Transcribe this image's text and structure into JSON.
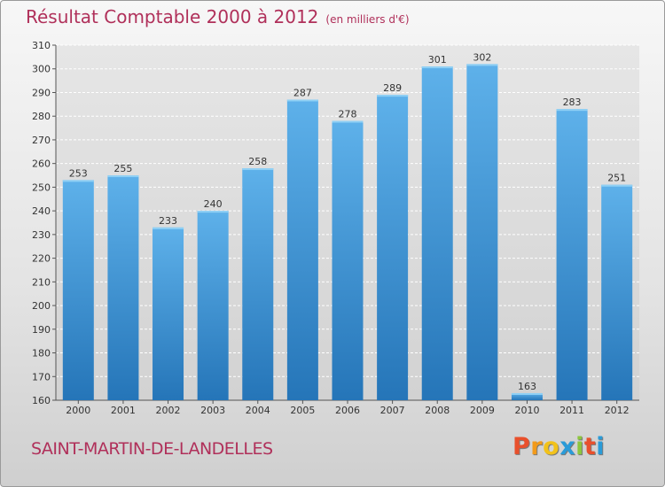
{
  "header": {
    "title": "Résultat Comptable 2000 à 2012",
    "subtitle": "(en milliers d'€)"
  },
  "footer": {
    "commune": "SAINT-MARTIN-DE-LANDELLES",
    "logo_letters": [
      "P",
      "r",
      "o",
      "x",
      "i",
      "t",
      "i"
    ],
    "logo_colors": [
      "#e8502c",
      "#f29a1a",
      "#f2c21a",
      "#2a9bd8",
      "#8cc63e",
      "#e8502c",
      "#2a9bd8"
    ]
  },
  "chart_data": {
    "type": "bar",
    "title": "Résultat Comptable 2000 à 2012",
    "subtitle": "(en milliers d'€)",
    "categories": [
      "2000",
      "2001",
      "2002",
      "2003",
      "2004",
      "2005",
      "2006",
      "2007",
      "2008",
      "2009",
      "2010",
      "2011",
      "2012"
    ],
    "values": [
      253,
      255,
      233,
      240,
      258,
      287,
      278,
      289,
      301,
      302,
      163,
      283,
      251
    ],
    "data_labels": [
      "253",
      "255",
      "233",
      "240",
      "258",
      "287",
      "278",
      "289",
      "301",
      "302",
      "163",
      "283",
      "251"
    ],
    "yticks": [
      "160",
      "170",
      "180",
      "190",
      "200",
      "210",
      "220",
      "230",
      "240",
      "250",
      "260",
      "270",
      "280",
      "290",
      "300",
      "310"
    ],
    "ylim": [
      160,
      310
    ],
    "grid": true,
    "colors": {
      "bar_top": "#5eb1ea",
      "bar_bottom": "#2575b8",
      "grid": "#ffffff",
      "plot_bg": "#dcdcdc"
    }
  }
}
